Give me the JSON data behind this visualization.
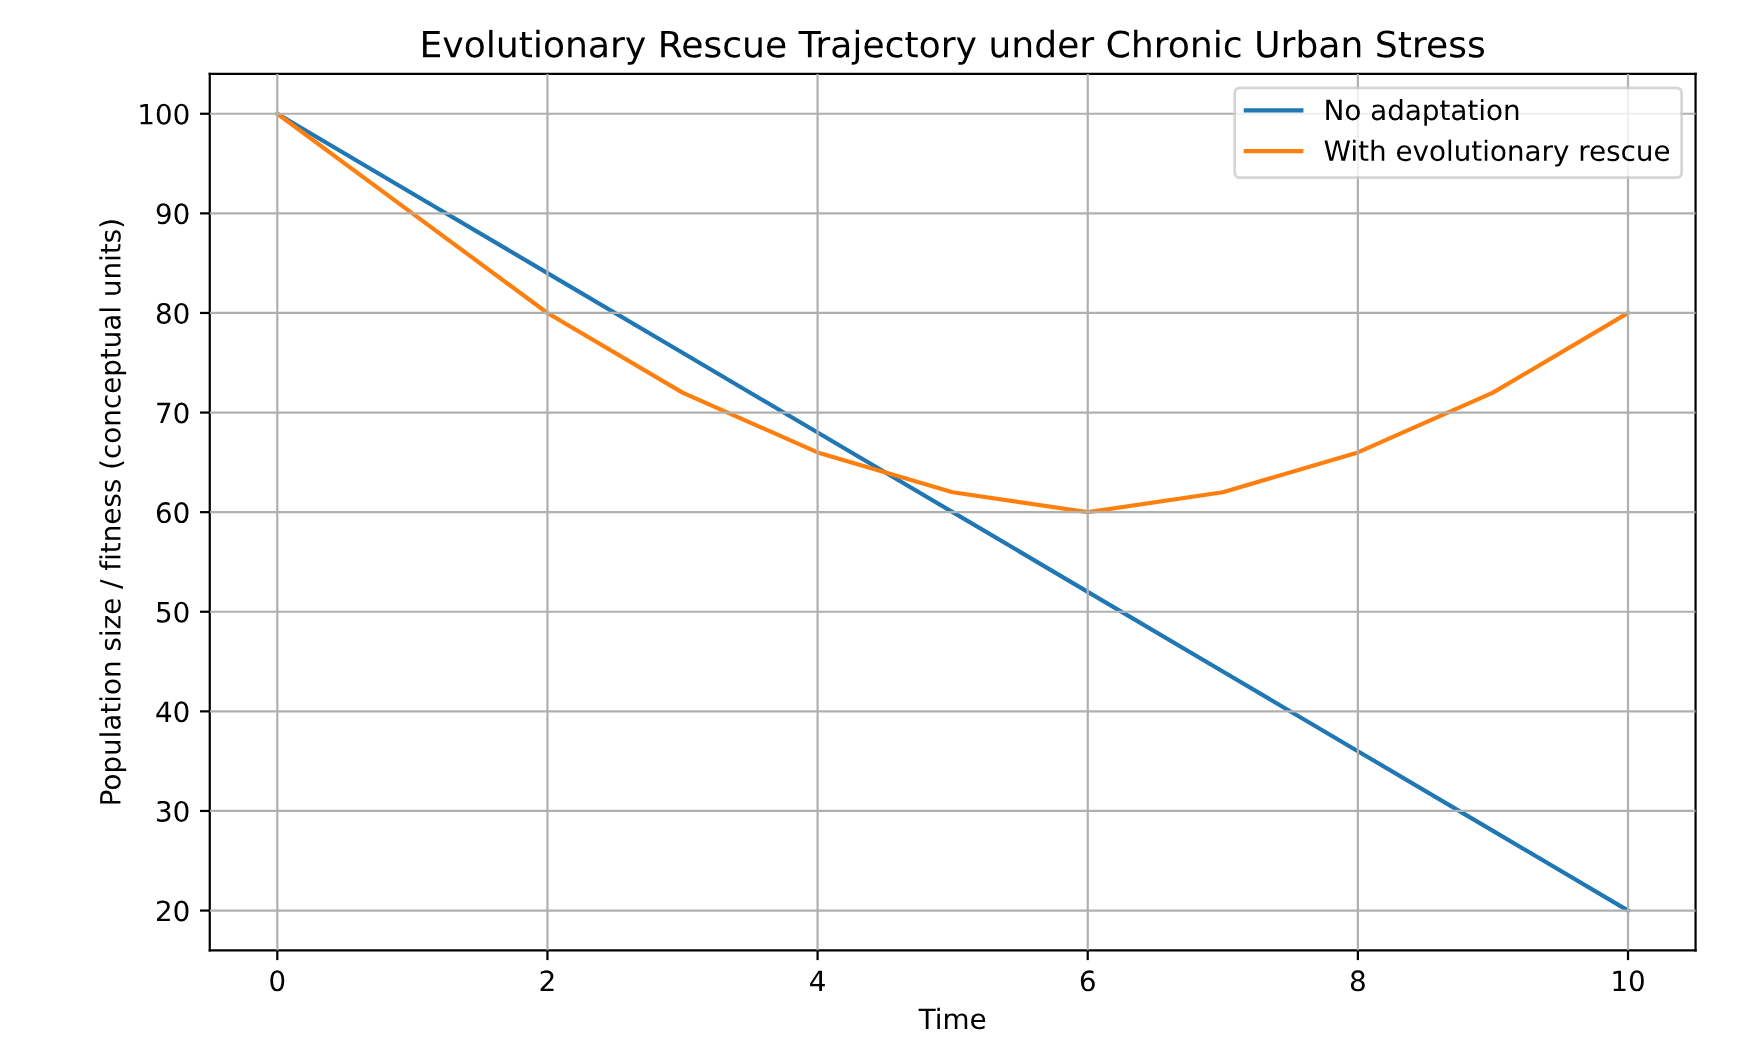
{
  "chart_data": {
    "type": "line",
    "title": "Evolutionary Rescue Trajectory under Chronic Urban Stress",
    "xlabel": "Time",
    "ylabel": "Population size / fitness (conceptual units)",
    "x": [
      0,
      1,
      2,
      3,
      4,
      5,
      6,
      7,
      8,
      9,
      10
    ],
    "series": [
      {
        "name": "No adaptation",
        "color": "#1f77b4",
        "values": [
          100,
          92,
          84,
          76,
          68,
          60,
          52,
          44,
          36,
          28,
          20
        ]
      },
      {
        "name": "With evolutionary rescue",
        "color": "#ff7f0e",
        "values": [
          100,
          90,
          80,
          72,
          66,
          62,
          60,
          62,
          66,
          72,
          80
        ]
      }
    ],
    "xlim": [
      -0.5,
      10.5
    ],
    "ylim": [
      16,
      104
    ],
    "xticks": [
      0,
      2,
      4,
      6,
      8,
      10
    ],
    "yticks": [
      20,
      30,
      40,
      50,
      60,
      70,
      80,
      90,
      100
    ],
    "grid": true,
    "legend": "top right",
    "marker": "none",
    "line_style": "solid"
  }
}
